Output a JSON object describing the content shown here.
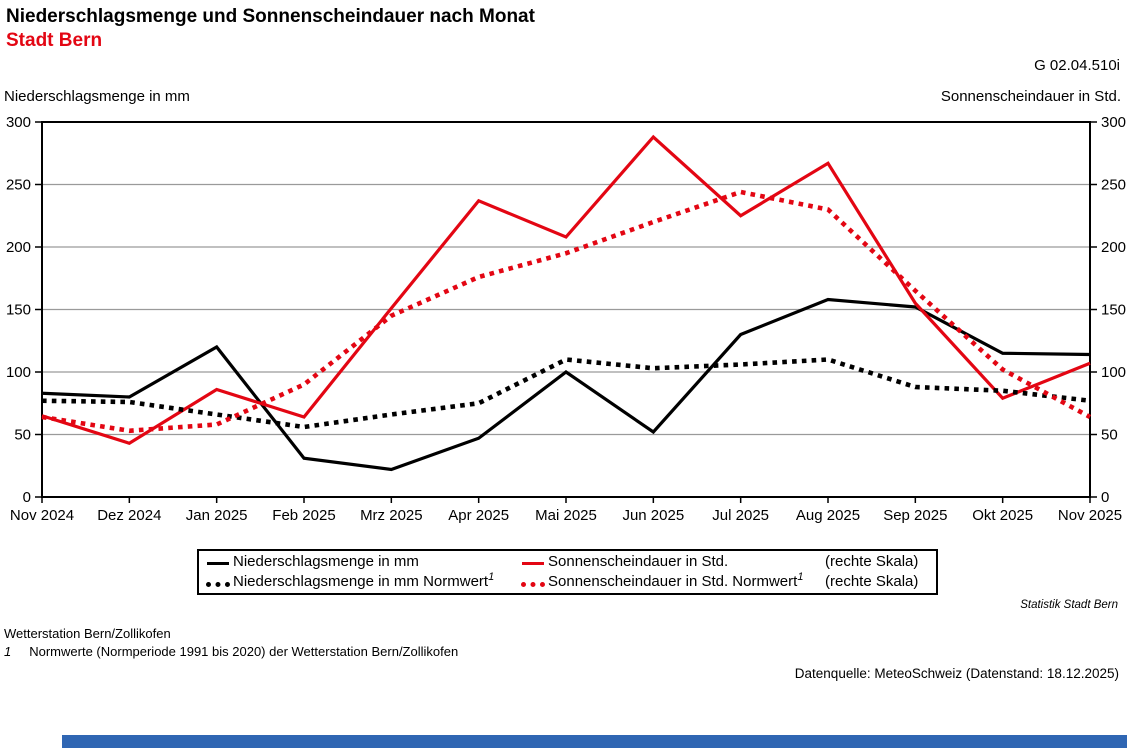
{
  "header": {
    "title": "Niederschlagsmenge und Sonnenscheindauer nach Monat",
    "subtitle": "Stadt Bern",
    "figure_code": "G 02.04.510i"
  },
  "axes": {
    "left_label": "Niederschlagsmenge in mm",
    "right_label": "Sonnenscheindauer in Std."
  },
  "chart_data": {
    "type": "line",
    "categories": [
      "Nov 2024",
      "Dez 2024",
      "Jan 2025",
      "Feb 2025",
      "Mrz 2025",
      "Apr 2025",
      "Mai 2025",
      "Jun 2025",
      "Jul 2025",
      "Aug 2025",
      "Sep 2025",
      "Okt 2025",
      "Nov 2025"
    ],
    "y_ticks": [
      0,
      50,
      100,
      150,
      200,
      250,
      300
    ],
    "ylim": [
      0,
      300
    ],
    "grid": true,
    "legend_position": "bottom",
    "dual_axis_note": "left axis = precipitation in mm, right axis = sunshine in hours, both 0-300",
    "series": [
      {
        "name": "Niederschlagsmenge in mm",
        "style": "solid",
        "color": "#000000",
        "axis": "left",
        "values": [
          83,
          80,
          120,
          31,
          22,
          47,
          100,
          52,
          130,
          158,
          152,
          115,
          114
        ]
      },
      {
        "name": "Sonnenscheindauer in Std.",
        "style": "solid",
        "color": "#e30613",
        "axis": "right",
        "values": [
          65,
          43,
          86,
          64,
          151,
          237,
          208,
          288,
          225,
          267,
          155,
          79,
          107
        ]
      },
      {
        "name": "Niederschlagsmenge in mm Normwert",
        "style": "dotted",
        "color": "#000000",
        "axis": "left",
        "values": [
          77,
          76,
          66,
          56,
          66,
          75,
          110,
          103,
          106,
          110,
          88,
          85,
          77
        ]
      },
      {
        "name": "Sonnenscheindauer in Std. Normwert",
        "style": "dotted",
        "color": "#e30613",
        "axis": "right",
        "values": [
          64,
          53,
          58,
          90,
          145,
          176,
          195,
          220,
          244,
          230,
          165,
          102,
          64
        ]
      }
    ]
  },
  "legend": {
    "row1_col1": "Niederschlagsmenge in mm",
    "row1_col2": "Sonnenscheindauer in Std.",
    "row1_note": "(rechte Skala)",
    "row2_col1": "Niederschlagsmenge in mm Normwert",
    "row2_col1_sup": "1",
    "row2_col2": "Sonnenscheindauer in Std. Normwert",
    "row2_col2_sup": "1",
    "row2_note": "(rechte Skala)"
  },
  "footer": {
    "attribution": "Statistik Stadt Bern",
    "station": "Wetterstation Bern/Zollikofen",
    "footnote_marker": "1",
    "footnote_text": "Normwerte (Normperiode 1991 bis 2020) der Wetterstation Bern/Zollikofen",
    "source": "Datenquelle: MeteoSchweiz (Datenstand: 18.12.2025)"
  },
  "colors": {
    "line_black": "#000000",
    "line_red": "#e30613",
    "grid_gray": "#9a9a9a",
    "axis_black": "#000000",
    "bottom_bar_blue": "#2f66b3"
  }
}
